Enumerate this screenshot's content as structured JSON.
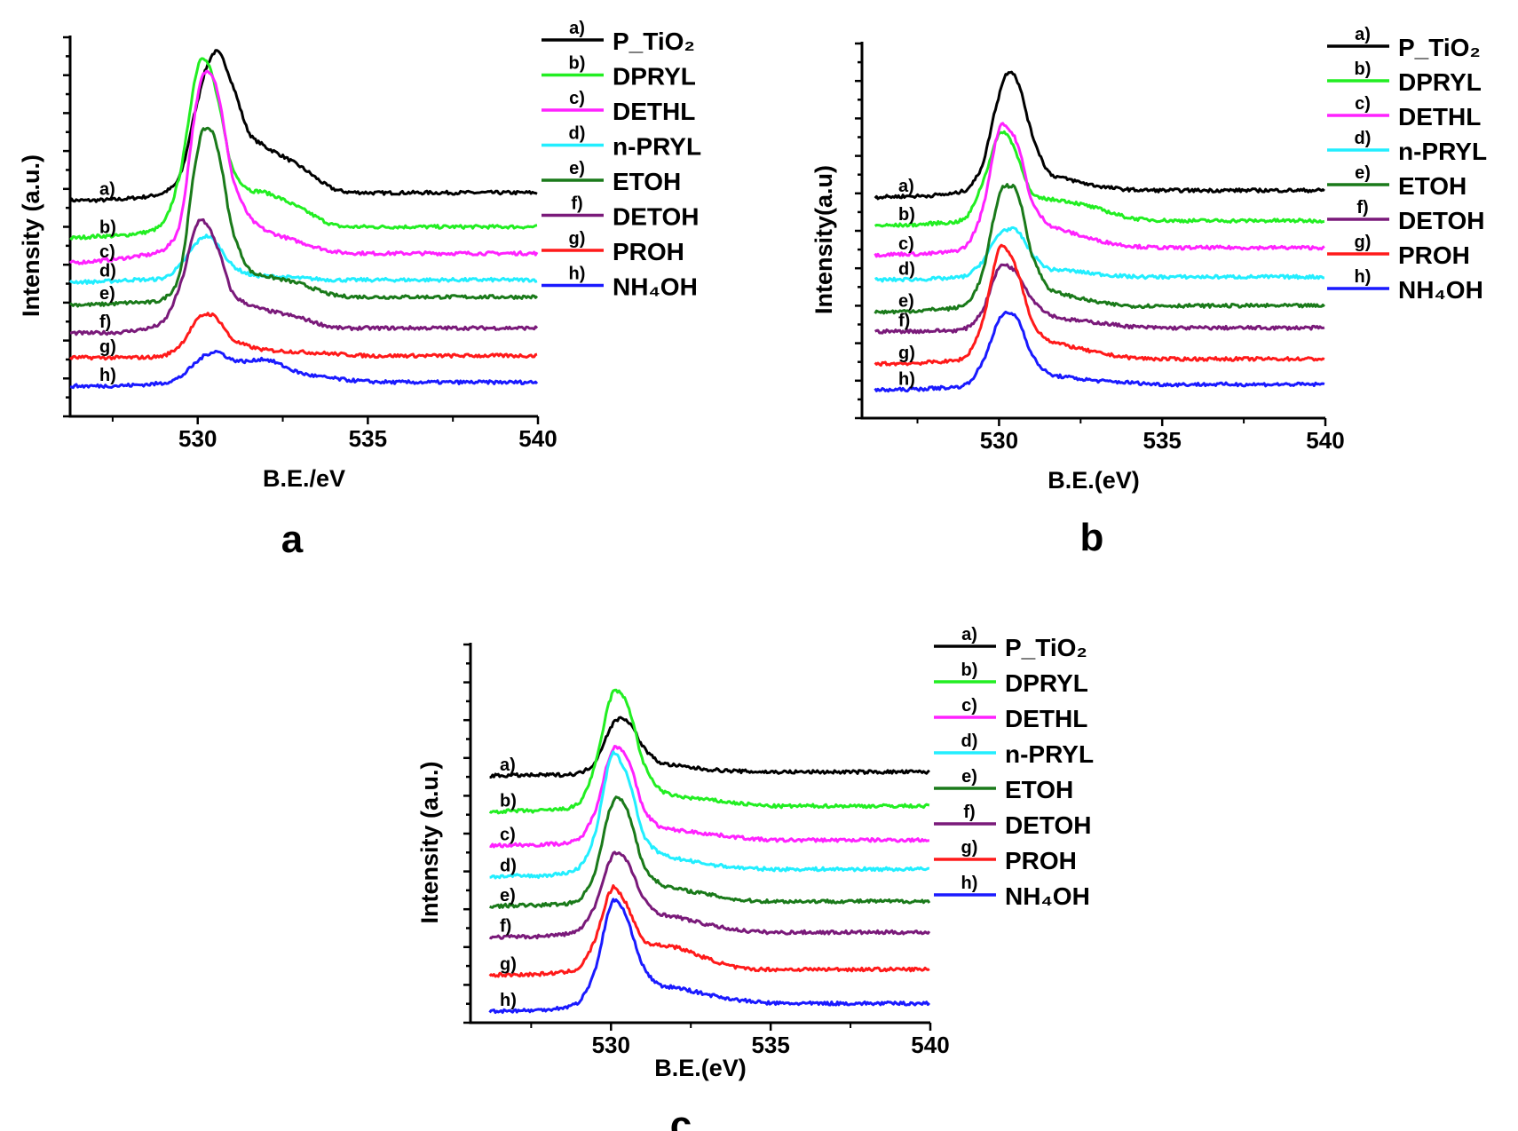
{
  "chart_data": [
    {
      "type": "line",
      "panel_label": "a",
      "xlabel": "B.E./eV",
      "ylabel": "Intensity (a.u.)",
      "xlim": [
        526.25,
        540
      ],
      "ylim": [
        0,
        10
      ],
      "x_ticks": [
        530,
        535,
        540
      ],
      "y_tick_labels": false,
      "legend_placement": "right",
      "x": [
        526.2,
        527,
        528,
        529,
        529.5,
        530,
        530.3,
        530.6,
        531,
        531.5,
        532,
        533,
        534,
        535,
        536,
        538,
        540
      ],
      "series": [
        {
          "tag": "a)",
          "name": "P_TiO₂",
          "color": "#000000",
          "values": [
            5.7,
            5.7,
            5.75,
            5.9,
            6.4,
            8.3,
            9.3,
            9.6,
            8.8,
            7.5,
            7.1,
            6.6,
            6.0,
            5.9,
            5.9,
            5.9,
            5.9
          ]
        },
        {
          "tag": "b)",
          "name": "DPRYL",
          "color": "#22ee22",
          "values": [
            4.7,
            4.75,
            4.8,
            5.1,
            6.5,
            9.2,
            9.3,
            8.3,
            6.6,
            6.0,
            5.9,
            5.5,
            5.05,
            5.0,
            5.0,
            5.0,
            5.0
          ]
        },
        {
          "tag": "c)",
          "name": "DETHL",
          "color": "#ff22ff",
          "values": [
            4.05,
            4.1,
            4.2,
            4.4,
            5.2,
            8.4,
            9.1,
            8.5,
            6.4,
            5.3,
            4.9,
            4.6,
            4.35,
            4.3,
            4.3,
            4.3,
            4.3
          ]
        },
        {
          "tag": "d)",
          "name": "n-PRYL",
          "color": "#22eeff",
          "values": [
            3.55,
            3.55,
            3.6,
            3.65,
            4.0,
            4.6,
            4.75,
            4.5,
            4.0,
            3.75,
            3.7,
            3.65,
            3.6,
            3.6,
            3.6,
            3.6,
            3.6
          ]
        },
        {
          "tag": "e)",
          "name": "ETOH",
          "color": "#1a7a1a",
          "values": [
            2.95,
            2.95,
            3.0,
            3.1,
            3.9,
            7.0,
            7.6,
            7.0,
            5.0,
            3.9,
            3.7,
            3.5,
            3.2,
            3.15,
            3.15,
            3.15,
            3.15
          ]
        },
        {
          "tag": "f)",
          "name": "DETOH",
          "color": "#7a1a7a",
          "values": [
            2.2,
            2.2,
            2.25,
            2.5,
            3.5,
            5.1,
            5.0,
            4.4,
            3.3,
            2.95,
            2.8,
            2.6,
            2.35,
            2.33,
            2.33,
            2.33,
            2.33
          ]
        },
        {
          "tag": "g)",
          "name": "PROH",
          "color": "#ff1a1a",
          "values": [
            1.55,
            1.55,
            1.55,
            1.6,
            1.9,
            2.55,
            2.7,
            2.55,
            2.05,
            1.85,
            1.75,
            1.7,
            1.65,
            1.6,
            1.6,
            1.6,
            1.6
          ]
        },
        {
          "tag": "h)",
          "name": "NH₄OH",
          "color": "#1a1aff",
          "values": [
            0.8,
            0.8,
            0.82,
            0.88,
            1.05,
            1.45,
            1.65,
            1.7,
            1.5,
            1.45,
            1.5,
            1.15,
            1.0,
            0.92,
            0.9,
            0.9,
            0.9
          ]
        }
      ]
    },
    {
      "type": "line",
      "panel_label": "b",
      "xlabel": "B.E.(eV)",
      "ylabel": "Intensity(a.u)",
      "xlim": [
        525.8,
        540
      ],
      "ylim": [
        0,
        10
      ],
      "x_ticks": [
        530,
        535,
        540
      ],
      "y_tick_labels": false,
      "legend_placement": "right",
      "x": [
        526.2,
        527,
        528,
        529,
        529.5,
        530,
        530.3,
        530.6,
        531,
        531.5,
        532,
        533,
        534,
        535,
        536,
        538,
        540
      ],
      "series": [
        {
          "tag": "a)",
          "name": "P_TiO₂",
          "color": "#000000",
          "values": [
            5.9,
            5.92,
            5.95,
            6.1,
            6.8,
            8.6,
            9.25,
            8.9,
            7.6,
            6.6,
            6.4,
            6.2,
            6.1,
            6.08,
            6.08,
            6.08,
            6.08
          ]
        },
        {
          "tag": "b)",
          "name": "DPRYL",
          "color": "#22ee22",
          "values": [
            5.14,
            5.15,
            5.2,
            5.35,
            6.3,
            7.55,
            7.5,
            6.9,
            6.0,
            5.85,
            5.8,
            5.6,
            5.35,
            5.28,
            5.27,
            5.27,
            5.27
          ]
        },
        {
          "tag": "c)",
          "name": "DETHL",
          "color": "#ff22ff",
          "values": [
            4.36,
            4.38,
            4.4,
            4.6,
            5.6,
            7.7,
            7.7,
            7.2,
            5.8,
            5.2,
            5.0,
            4.75,
            4.6,
            4.55,
            4.55,
            4.55,
            4.55
          ]
        },
        {
          "tag": "d)",
          "name": "n-PRYL",
          "color": "#22eeff",
          "values": [
            3.69,
            3.7,
            3.72,
            3.8,
            4.2,
            4.9,
            5.04,
            4.95,
            4.4,
            4.0,
            3.95,
            3.85,
            3.78,
            3.77,
            3.77,
            3.77,
            3.77
          ]
        },
        {
          "tag": "e)",
          "name": "ETOH",
          "color": "#1a7a1a",
          "values": [
            2.83,
            2.85,
            2.9,
            3.05,
            3.9,
            5.9,
            6.2,
            5.9,
            4.4,
            3.5,
            3.3,
            3.1,
            3.0,
            3.0,
            3.0,
            3.0,
            3.0
          ]
        },
        {
          "tag": "f)",
          "name": "DETOH",
          "color": "#7a1a7a",
          "values": [
            2.31,
            2.32,
            2.33,
            2.4,
            2.9,
            4.0,
            4.05,
            3.8,
            3.2,
            2.8,
            2.65,
            2.55,
            2.45,
            2.41,
            2.41,
            2.41,
            2.41
          ]
        },
        {
          "tag": "g)",
          "name": "PROH",
          "color": "#ff1a1a",
          "values": [
            1.45,
            1.46,
            1.5,
            1.65,
            2.6,
            4.5,
            4.4,
            3.8,
            2.6,
            2.1,
            1.95,
            1.75,
            1.62,
            1.58,
            1.58,
            1.58,
            1.58
          ]
        },
        {
          "tag": "h)",
          "name": "NH₄OH",
          "color": "#1a1aff",
          "values": [
            0.75,
            0.76,
            0.8,
            0.9,
            1.5,
            2.6,
            2.8,
            2.6,
            1.7,
            1.2,
            1.1,
            1.0,
            0.95,
            0.9,
            0.9,
            0.9,
            0.9
          ]
        }
      ]
    },
    {
      "type": "line",
      "panel_label": "c",
      "xlabel": "B.E.(eV)",
      "ylabel": "Intensity (a.u.)",
      "xlim": [
        525.6,
        540
      ],
      "ylim": [
        0,
        10
      ],
      "x_ticks": [
        530,
        535,
        540
      ],
      "y_tick_labels": false,
      "legend_placement": "right",
      "x": [
        526.2,
        527,
        528,
        529,
        529.5,
        530,
        530.3,
        530.6,
        531,
        531.5,
        532,
        533,
        534,
        535,
        536,
        538,
        540
      ],
      "series": [
        {
          "tag": "a)",
          "name": "P_TiO₂",
          "color": "#000000",
          "values": [
            6.53,
            6.54,
            6.55,
            6.6,
            6.9,
            7.8,
            8.05,
            7.9,
            7.3,
            6.9,
            6.8,
            6.7,
            6.65,
            6.63,
            6.63,
            6.63,
            6.63
          ]
        },
        {
          "tag": "b)",
          "name": "DPRYL",
          "color": "#22ee22",
          "values": [
            5.58,
            5.6,
            5.62,
            5.8,
            6.8,
            8.6,
            8.7,
            8.2,
            6.9,
            6.2,
            6.0,
            5.9,
            5.8,
            5.73,
            5.73,
            5.73,
            5.73
          ]
        },
        {
          "tag": "c)",
          "name": "DETHL",
          "color": "#ff22ff",
          "values": [
            4.68,
            4.7,
            4.72,
            4.85,
            5.6,
            7.1,
            7.25,
            6.8,
            5.7,
            5.2,
            5.1,
            5.0,
            4.9,
            4.83,
            4.83,
            4.83,
            4.83
          ]
        },
        {
          "tag": "d)",
          "name": "n-PRYL",
          "color": "#22eeff",
          "values": [
            3.86,
            3.88,
            3.9,
            4.1,
            5.0,
            7.0,
            6.9,
            6.3,
            5.0,
            4.5,
            4.35,
            4.2,
            4.1,
            4.06,
            4.06,
            4.06,
            4.06
          ]
        },
        {
          "tag": "e)",
          "name": "ETOH",
          "color": "#1a7a1a",
          "values": [
            3.08,
            3.1,
            3.12,
            3.25,
            4.0,
            5.7,
            5.9,
            5.4,
            4.2,
            3.7,
            3.55,
            3.4,
            3.25,
            3.21,
            3.21,
            3.21,
            3.21
          ]
        },
        {
          "tag": "f)",
          "name": "DETOH",
          "color": "#7a1a7a",
          "values": [
            2.26,
            2.27,
            2.3,
            2.45,
            3.1,
            4.35,
            4.45,
            4.1,
            3.3,
            2.9,
            2.8,
            2.6,
            2.45,
            2.39,
            2.39,
            2.39,
            2.39
          ]
        },
        {
          "tag": "g)",
          "name": "PROH",
          "color": "#ff1a1a",
          "values": [
            1.26,
            1.27,
            1.3,
            1.45,
            2.2,
            3.5,
            3.4,
            2.9,
            2.2,
            2.05,
            2.0,
            1.7,
            1.45,
            1.41,
            1.41,
            1.41,
            1.41
          ]
        },
        {
          "tag": "h)",
          "name": "NH₄OH",
          "color": "#1a1aff",
          "values": [
            0.31,
            0.32,
            0.35,
            0.55,
            1.4,
            3.1,
            3.1,
            2.5,
            1.5,
            1.0,
            0.93,
            0.75,
            0.6,
            0.52,
            0.51,
            0.51,
            0.51
          ]
        }
      ]
    }
  ]
}
